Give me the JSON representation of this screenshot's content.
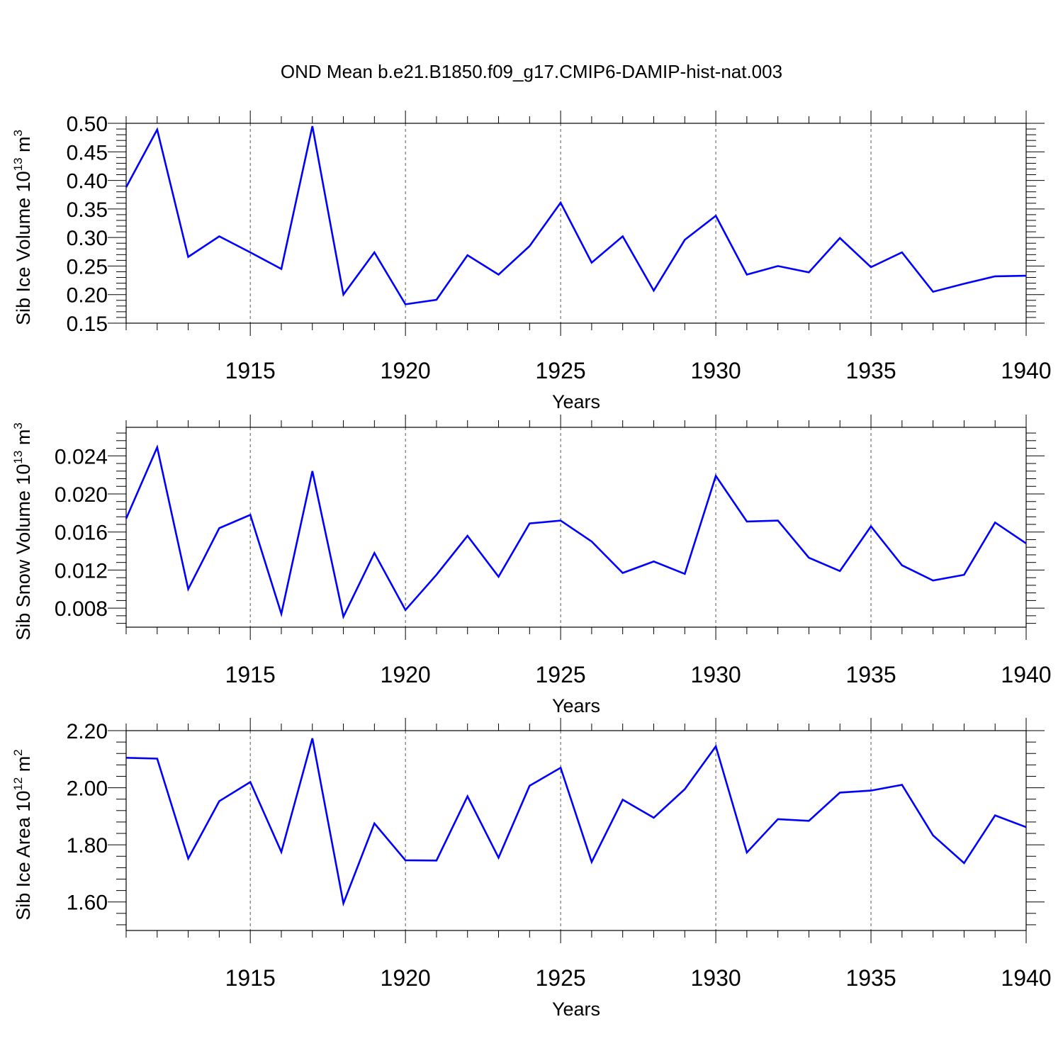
{
  "figure_title": "OND Mean b.e21.B1850.f09_g17.CMIP6-DAMIP-hist-nat.003",
  "colors": {
    "series": "#0000ff",
    "axis": "#000000",
    "gridline": "#555555"
  },
  "chart_data": [
    {
      "type": "line",
      "xlabel": "Years",
      "ylabel_main": "Sib Ice Volume 10",
      "ylabel_exp": "13",
      "ylabel_unit": " m",
      "ylabel_unit_exp": "3",
      "xlim": [
        1911,
        1940
      ],
      "ylim": [
        0.15,
        0.5
      ],
      "xticks": [
        1915,
        1920,
        1925,
        1930,
        1935,
        1940
      ],
      "ytick_labels": [
        "0.15",
        "0.20",
        "0.25",
        "0.30",
        "0.35",
        "0.40",
        "0.45",
        "0.50"
      ],
      "yticks": [
        0.15,
        0.2,
        0.25,
        0.3,
        0.35,
        0.4,
        0.45,
        0.5
      ],
      "x": [
        1911,
        1912,
        1913,
        1914,
        1915,
        1916,
        1917,
        1918,
        1919,
        1920,
        1921,
        1922,
        1923,
        1924,
        1925,
        1926,
        1927,
        1928,
        1929,
        1930,
        1931,
        1932,
        1933,
        1934,
        1935,
        1936,
        1937,
        1938,
        1939,
        1940
      ],
      "values": [
        0.388,
        0.489,
        0.266,
        0.302,
        0.274,
        0.245,
        0.495,
        0.2,
        0.274,
        0.183,
        0.191,
        0.269,
        0.235,
        0.285,
        0.361,
        0.256,
        0.302,
        0.207,
        0.296,
        0.338,
        0.235,
        0.25,
        0.239,
        0.299,
        0.248,
        0.274,
        0.205,
        0.219,
        0.232,
        0.233
      ]
    },
    {
      "type": "line",
      "xlabel": "Years",
      "ylabel_main": "Sib Snow Volume 10",
      "ylabel_exp": "13",
      "ylabel_unit": " m",
      "ylabel_unit_exp": "3",
      "xlim": [
        1911,
        1940
      ],
      "ylim": [
        0.006,
        0.027
      ],
      "xticks": [
        1915,
        1920,
        1925,
        1930,
        1935,
        1940
      ],
      "ytick_labels": [
        "0.008",
        "0.012",
        "0.016",
        "0.020",
        "0.024"
      ],
      "yticks": [
        0.008,
        0.012,
        0.016,
        0.02,
        0.024
      ],
      "x": [
        1911,
        1912,
        1913,
        1914,
        1915,
        1916,
        1917,
        1918,
        1919,
        1920,
        1921,
        1922,
        1923,
        1924,
        1925,
        1926,
        1927,
        1928,
        1929,
        1930,
        1931,
        1932,
        1933,
        1934,
        1935,
        1936,
        1937,
        1938,
        1939,
        1940
      ],
      "values": [
        0.0174,
        0.0249,
        0.01,
        0.0164,
        0.0178,
        0.0074,
        0.0224,
        0.0071,
        0.0138,
        0.0078,
        0.0115,
        0.0156,
        0.0113,
        0.0169,
        0.0172,
        0.015,
        0.0117,
        0.0129,
        0.0116,
        0.0219,
        0.0171,
        0.0172,
        0.0133,
        0.0119,
        0.0166,
        0.0125,
        0.0109,
        0.0115,
        0.017,
        0.0148
      ]
    },
    {
      "type": "line",
      "xlabel": "Years",
      "ylabel_main": "Sib Ice Area 10",
      "ylabel_exp": "12",
      "ylabel_unit": " m",
      "ylabel_unit_exp": "2",
      "xlim": [
        1911,
        1940
      ],
      "ylim": [
        1.5,
        2.2
      ],
      "xticks": [
        1915,
        1920,
        1925,
        1930,
        1935,
        1940
      ],
      "ytick_labels": [
        "1.60",
        "1.80",
        "2.00",
        "2.20"
      ],
      "yticks": [
        1.6,
        1.8,
        2.0,
        2.2
      ],
      "x": [
        1911,
        1912,
        1913,
        1914,
        1915,
        1916,
        1917,
        1918,
        1919,
        1920,
        1921,
        1922,
        1923,
        1924,
        1925,
        1926,
        1927,
        1928,
        1929,
        1930,
        1931,
        1932,
        1933,
        1934,
        1935,
        1936,
        1937,
        1938,
        1939,
        1940
      ],
      "values": [
        2.105,
        2.102,
        1.752,
        1.953,
        2.02,
        1.775,
        2.173,
        1.595,
        1.875,
        1.746,
        1.745,
        1.97,
        1.755,
        2.007,
        2.07,
        1.74,
        1.958,
        1.895,
        1.995,
        2.145,
        1.773,
        1.89,
        1.884,
        1.983,
        1.99,
        2.01,
        1.833,
        1.736,
        1.903,
        1.862
      ]
    }
  ]
}
